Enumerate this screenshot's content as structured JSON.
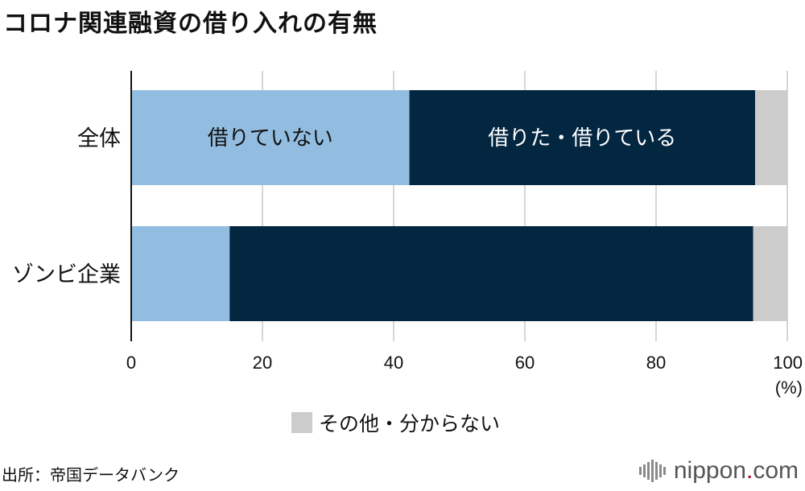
{
  "title": "コロナ関連融資の借り入れの有無",
  "source": "出所：帝国データバンク",
  "logo": {
    "name": "nippon",
    "dot": ".",
    "tld": "com"
  },
  "colors": {
    "not_borrowed": "#93bde0",
    "borrowed": "#032641",
    "other": "#cccccc",
    "grid": "#c8c8c8"
  },
  "chart_data": {
    "type": "bar",
    "orientation": "horizontal",
    "stacked": true,
    "categories": [
      "全体",
      "ゾンビ企業"
    ],
    "series": [
      {
        "name": "借りていない",
        "values": [
          42.4,
          15.0
        ]
      },
      {
        "name": "借りた・借りている",
        "values": [
          52.7,
          79.8
        ]
      },
      {
        "name": "その他・分からない",
        "values": [
          4.9,
          5.2
        ]
      }
    ],
    "inbar_labels": [
      "借りていない",
      "借りた・借りている"
    ],
    "xlim": [
      0,
      100
    ],
    "xticks": [
      "0",
      "20",
      "40",
      "60",
      "80",
      "100"
    ],
    "xunit": "(%)",
    "legend": [
      "その他・分からない"
    ],
    "grid": true
  }
}
